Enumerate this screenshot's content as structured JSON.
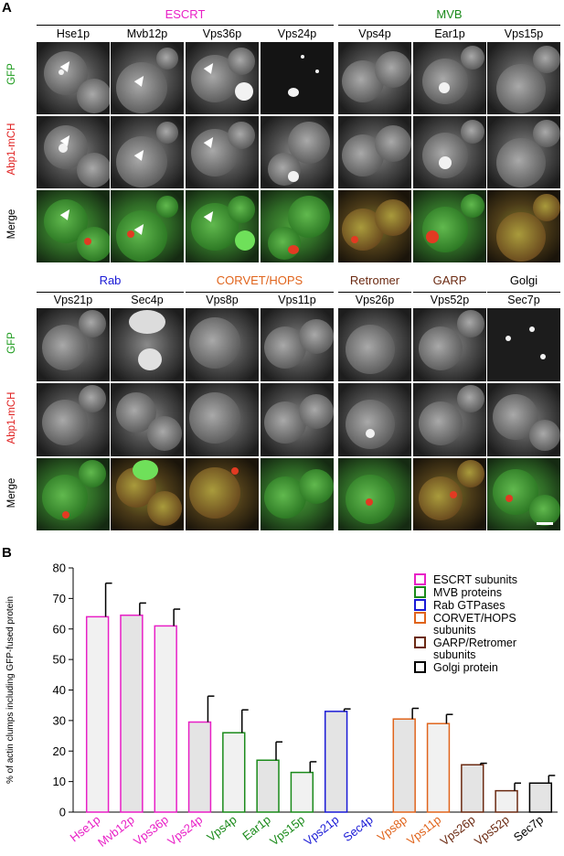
{
  "panel_a": {
    "letter": "A",
    "top": {
      "groups": [
        {
          "label": "ESCRT",
          "color": "#e81fc6"
        },
        {
          "label": "MVB",
          "color": "#1a8a1a"
        }
      ],
      "columns": [
        "Hse1p",
        "Mvb12p",
        "Vps36p",
        "Vps24p",
        "Vps4p",
        "Ear1p",
        "Vps15p"
      ]
    },
    "bottom": {
      "groups": [
        {
          "label": "Rab",
          "color": "#1a1ad6"
        },
        {
          "label": "CORVET/HOPS",
          "color": "#e0641c"
        },
        {
          "label": "Retromer",
          "color": "#6b2a12"
        },
        {
          "label": "GARP",
          "color": "#6b2a12"
        },
        {
          "label": "Golgi",
          "color": "#000000"
        }
      ],
      "columns": [
        "Vps21p",
        "Sec4p",
        "Vps8p",
        "Vps11p",
        "Vps26p",
        "Vps52p",
        "Sec7p"
      ]
    },
    "rows": [
      {
        "label": "GFP",
        "color": "#1a9a1a"
      },
      {
        "label": "Abp1-mCH",
        "color": "#e02020"
      },
      {
        "label": "Merge",
        "color": "#000000"
      }
    ]
  },
  "panel_b": {
    "letter": "B"
  },
  "chart_data": {
    "type": "bar",
    "ylabel": "% of actin clumps including GFP-fused protein",
    "ylim": [
      0,
      80
    ],
    "yticks": [
      0,
      10,
      20,
      30,
      40,
      50,
      60,
      70,
      80
    ],
    "categories": [
      "Hse1p",
      "Mvb12p",
      "Vps36p",
      "Vps24p",
      "Vps4p",
      "Ear1p",
      "Vps15p",
      "Vps21p",
      "Sec4p",
      "Vps8p",
      "Vps11p",
      "Vps26p",
      "Vps52p",
      "Sec7p"
    ],
    "values": [
      64,
      64.5,
      61,
      29.5,
      26,
      17,
      13,
      33,
      0,
      30.5,
      29,
      15.5,
      7,
      9.5
    ],
    "errors": [
      11,
      4,
      5.5,
      8.5,
      7.5,
      6,
      3.5,
      0.8,
      0,
      3.5,
      3,
      0.5,
      2.5,
      2.5
    ],
    "colors": [
      "#e81fc6",
      "#e81fc6",
      "#e81fc6",
      "#e81fc6",
      "#1a8a1a",
      "#1a8a1a",
      "#1a8a1a",
      "#1a1ad6",
      "#1a1ad6",
      "#e0641c",
      "#e0641c",
      "#6b2a12",
      "#6b2a12",
      "#000000"
    ],
    "legend": [
      {
        "label": "ESCRT subunits",
        "color": "#e81fc6"
      },
      {
        "label": "MVB proteins",
        "color": "#1a8a1a"
      },
      {
        "label": "Rab GTPases",
        "color": "#1a1ad6"
      },
      {
        "label": "CORVET/HOPS subunits",
        "color": "#e0641c"
      },
      {
        "label": "GARP/Retromer subunits",
        "color": "#6b2a12"
      },
      {
        "label": "Golgi protein",
        "color": "#000000"
      }
    ],
    "legend_position": "top-right"
  }
}
